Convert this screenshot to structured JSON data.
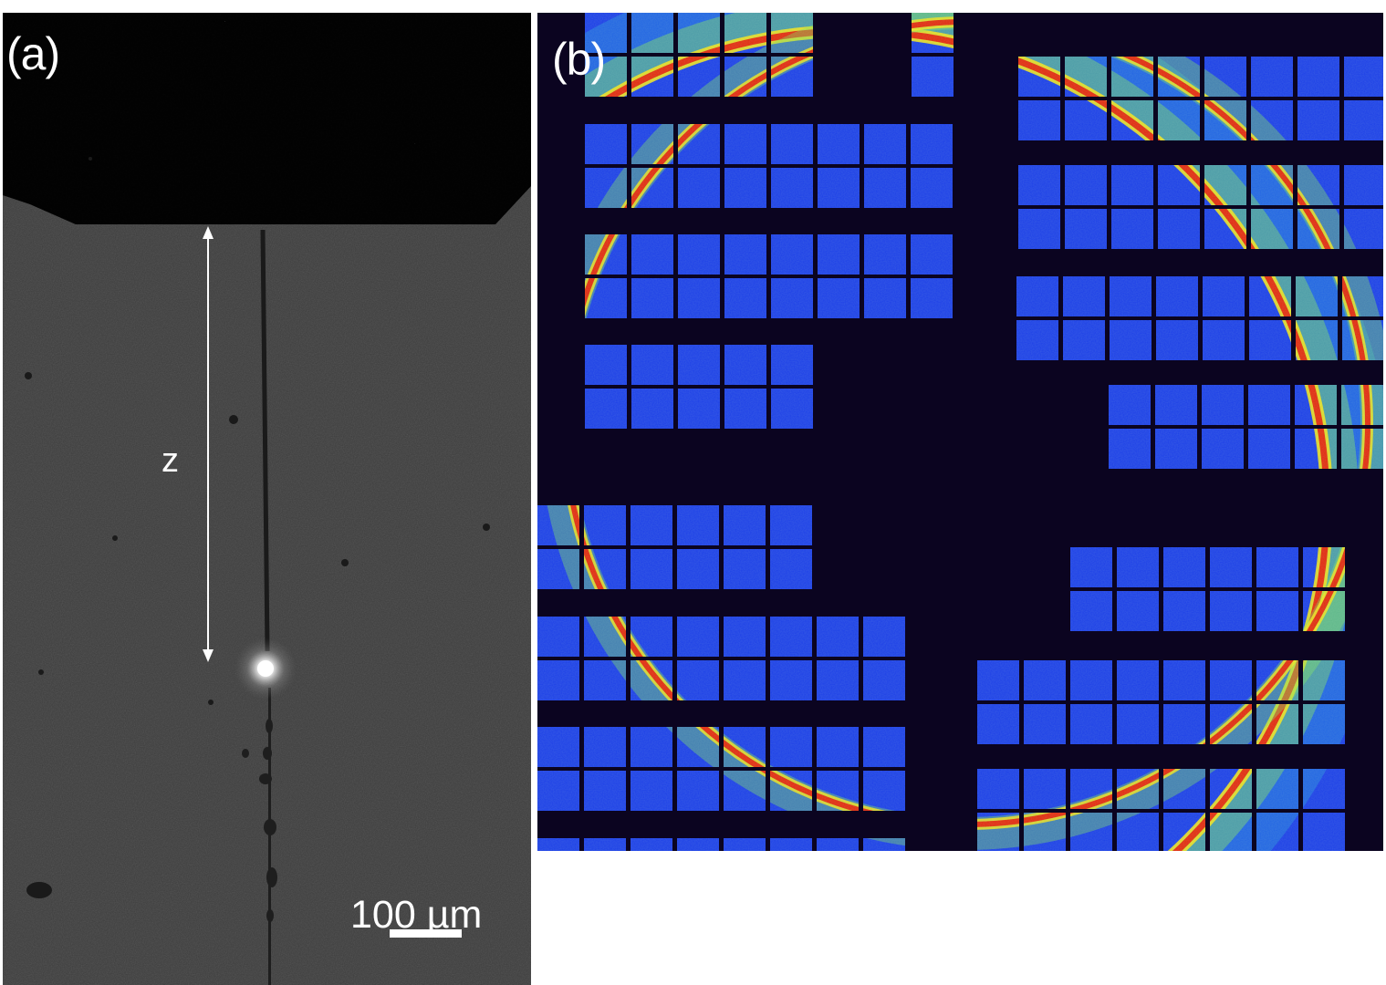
{
  "panel_a": {
    "label": "(a)",
    "distance_label": "z",
    "scale_bar": {
      "text": "100 µm"
    }
  },
  "panel_b": {
    "label": "(b)",
    "colors": {
      "background": "#0b0420",
      "module_low": "#1c3ee8",
      "ring": "#e22a10"
    }
  }
}
